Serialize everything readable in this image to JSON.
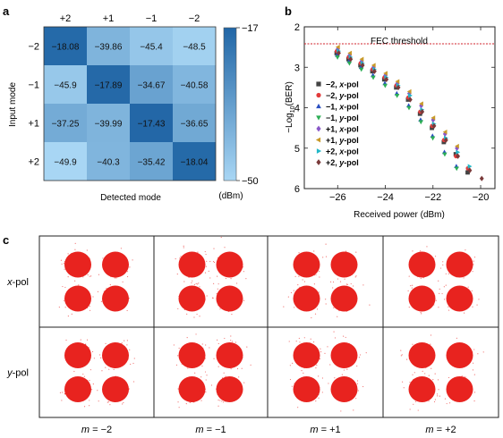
{
  "panels": {
    "a": "a",
    "b": "b",
    "c": "c"
  },
  "chart_data": [
    {
      "type": "heatmap",
      "panel": "a",
      "xlabel": "Detected mode",
      "ylabel": "Input mode",
      "x_categories": [
        "+2",
        "+1",
        "−1",
        "−2"
      ],
      "y_categories": [
        "−2",
        "−1",
        "+1",
        "+2"
      ],
      "values": [
        [
          -18.08,
          -39.86,
          -45.4,
          -48.5
        ],
        [
          -45.9,
          -17.89,
          -34.67,
          -40.58
        ],
        [
          -37.25,
          -39.99,
          -17.43,
          -36.65
        ],
        [
          -49.9,
          -40.3,
          -35.42,
          -18.04
        ]
      ],
      "value_labels": [
        [
          "−18.08",
          "−39.86",
          "−45.4",
          "−48.5"
        ],
        [
          "−45.9",
          "−17.89",
          "−34.67",
          "−40.58"
        ],
        [
          "−37.25",
          "−39.99",
          "−17.43",
          "−36.65"
        ],
        [
          "−49.9",
          "−40.3",
          "−35.42",
          "−18.04"
        ]
      ],
      "colorbar": {
        "max_label": "−17",
        "min_label": "−50",
        "unit": "(dBm)",
        "min": -50,
        "max": -17
      },
      "colors": {
        "high": "#2166a6",
        "low": "#a8d6f4"
      }
    },
    {
      "type": "scatter",
      "panel": "b",
      "xlabel": "Received power (dBm)",
      "ylabel_prefix": "−Log",
      "ylabel_sub": "10",
      "ylabel_suffix": "(BER)",
      "xlim": [
        -27.4,
        -19.4
      ],
      "ylim": [
        2,
        6
      ],
      "y_inverted": true,
      "x_ticks": [
        -26,
        -24,
        -22,
        -20
      ],
      "x_tick_labels": [
        "−26",
        "−24",
        "−22",
        "−20"
      ],
      "y_ticks": [
        2,
        3,
        4,
        5,
        6
      ],
      "y_tick_labels": [
        "2",
        "3",
        "4",
        "5",
        "6"
      ],
      "threshold": {
        "label": "FEC threshold",
        "y": 2.42,
        "color": "#d0202a"
      },
      "series": [
        {
          "mode": "−2,",
          "pol": "x",
          "suffix": "-pol",
          "marker": "square",
          "color": "#444444",
          "x": [
            -26,
            -25.5,
            -25,
            -24.5,
            -24,
            -23.5,
            -23,
            -22.5,
            -22,
            -21.5,
            -21,
            -20.5
          ],
          "y": [
            2.65,
            2.8,
            2.95,
            3.1,
            3.3,
            3.5,
            3.8,
            4.15,
            4.5,
            4.85,
            5.15,
            5.6
          ]
        },
        {
          "mode": "−2,",
          "pol": "y",
          "suffix": "-pol",
          "marker": "circle",
          "color": "#e23b3b",
          "x": [
            -26,
            -25.5,
            -25,
            -24.5,
            -24,
            -23.5,
            -23,
            -22.5,
            -22,
            -21.5,
            -21,
            -20.5
          ],
          "y": [
            2.6,
            2.75,
            2.9,
            3.05,
            3.25,
            3.45,
            3.75,
            4.1,
            4.45,
            4.8,
            5.2,
            5.5
          ]
        },
        {
          "mode": "−1,",
          "pol": "x",
          "suffix": "-pol",
          "marker": "triangle-up",
          "color": "#2a4fc0",
          "x": [
            -26,
            -25.5,
            -25,
            -24.5,
            -24,
            -23.5,
            -23,
            -22.5,
            -22,
            -21.5,
            -21
          ],
          "y": [
            2.7,
            2.85,
            3.0,
            3.2,
            3.4,
            3.65,
            3.95,
            4.3,
            4.7,
            5.1,
            5.45
          ]
        },
        {
          "mode": "−1,",
          "pol": "y",
          "suffix": "-pol",
          "marker": "triangle-down",
          "color": "#2cae55",
          "x": [
            -26,
            -25.5,
            -25,
            -24.5,
            -24,
            -23.5,
            -23,
            -22.5,
            -22,
            -21.5,
            -21
          ],
          "y": [
            2.75,
            2.9,
            3.05,
            3.25,
            3.45,
            3.7,
            4.0,
            4.35,
            4.75,
            5.15,
            5.5
          ]
        },
        {
          "mode": "+1,",
          "pol": "x",
          "suffix": "-pol",
          "marker": "diamond",
          "color": "#8a58c8",
          "x": [
            -26,
            -25.5,
            -25,
            -24.5,
            -24,
            -23.5,
            -23,
            -22.5,
            -22,
            -21.5,
            -21
          ],
          "y": [
            2.55,
            2.7,
            2.85,
            3.0,
            3.2,
            3.4,
            3.65,
            3.95,
            4.3,
            4.65,
            5.0
          ]
        },
        {
          "mode": "+1,",
          "pol": "y",
          "suffix": "-pol",
          "marker": "triangle-left",
          "color": "#c89a2a",
          "x": [
            -26,
            -25.5,
            -25,
            -24.5,
            -24,
            -23.5,
            -23,
            -22.5,
            -22,
            -21.5,
            -21
          ],
          "y": [
            2.5,
            2.65,
            2.8,
            2.95,
            3.15,
            3.35,
            3.6,
            3.9,
            4.25,
            4.6,
            4.95
          ]
        },
        {
          "mode": "+2,",
          "pol": "x",
          "suffix": "-pol",
          "marker": "triangle-right",
          "color": "#22b8c8",
          "x": [
            -26,
            -25.5,
            -25,
            -24.5,
            -24,
            -23.5,
            -23,
            -22.5,
            -22,
            -21.5,
            -21,
            -20.5
          ],
          "y": [
            2.6,
            2.75,
            2.9,
            3.05,
            3.25,
            3.45,
            3.7,
            4.05,
            4.4,
            4.75,
            5.1,
            5.45
          ]
        },
        {
          "mode": "+2,",
          "pol": "y",
          "suffix": "-pol",
          "marker": "diamond",
          "color": "#7a3a3a",
          "x": [
            -26,
            -25.5,
            -25,
            -24.5,
            -24,
            -23.5,
            -23,
            -22.5,
            -22,
            -21.5,
            -21,
            -20.5,
            -20
          ],
          "y": [
            2.65,
            2.8,
            2.95,
            3.1,
            3.3,
            3.5,
            3.8,
            4.1,
            4.45,
            4.8,
            5.2,
            5.55,
            5.75
          ]
        }
      ]
    },
    {
      "type": "table",
      "panel": "c",
      "description_free": true,
      "row_labels": [
        {
          "pol": "x",
          "suffix": "-pol"
        },
        {
          "pol": "y",
          "suffix": "-pol"
        }
      ],
      "col_labels": [
        {
          "var": "m",
          "text": " = −2"
        },
        {
          "var": "m",
          "text": " = −1"
        },
        {
          "var": "m",
          "text": " = +1"
        },
        {
          "var": "m",
          "text": " = +2"
        }
      ],
      "constellation_color": "#e8231f",
      "constellation_points": 4
    }
  ]
}
